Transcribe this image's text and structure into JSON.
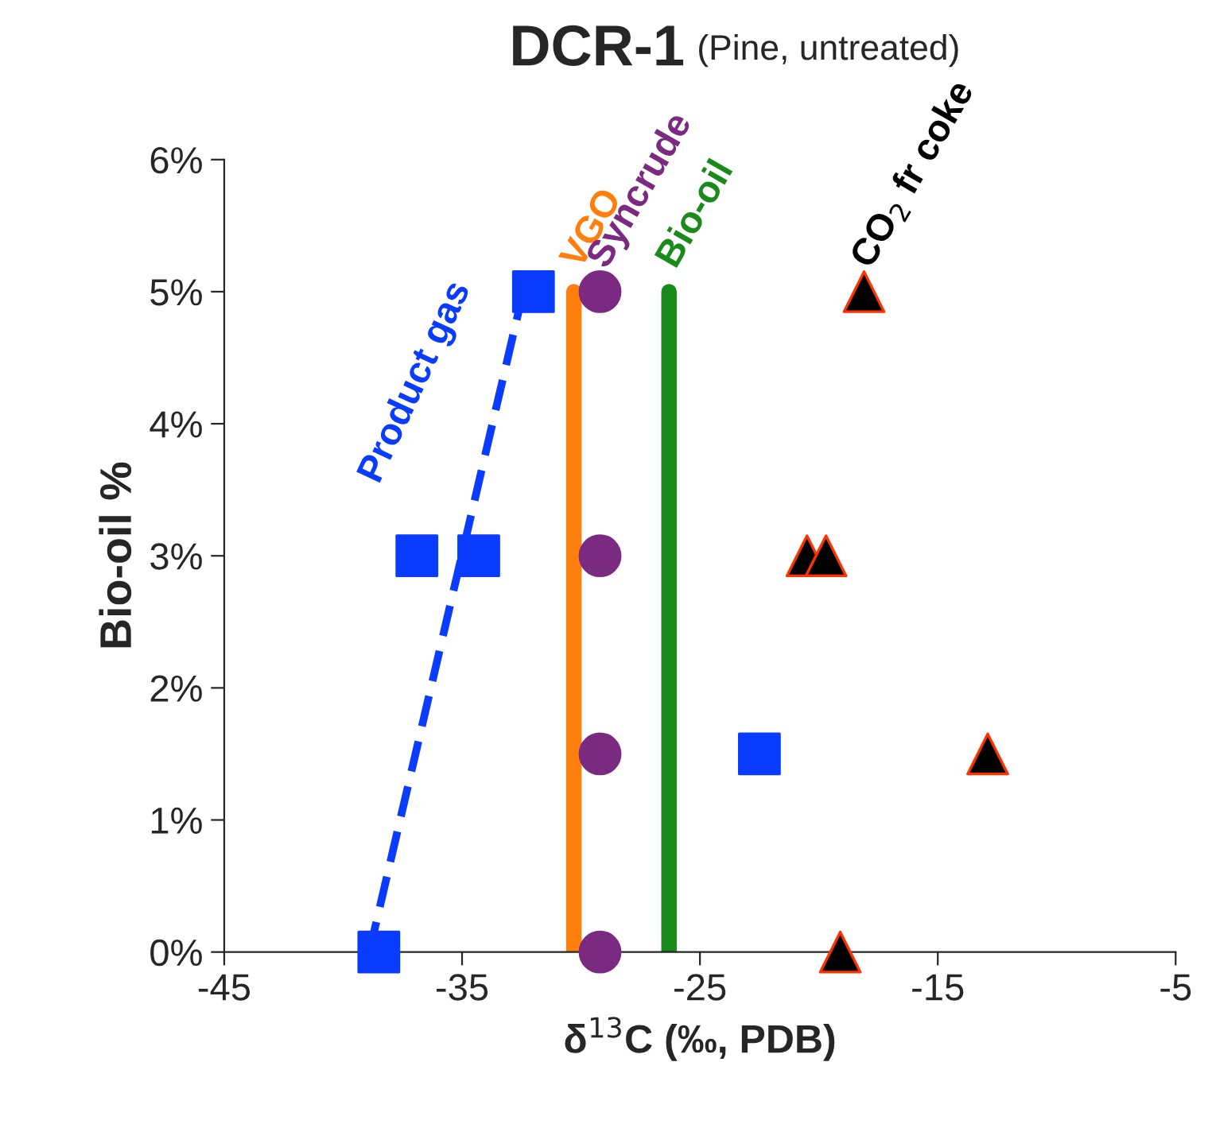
{
  "chart_data": {
    "type": "scatter",
    "title": "DCR-1",
    "subtitle": "(Pine, untreated)",
    "xlabel": "δ$^{13}$C (‰, PDB)",
    "ylabel": "Bio-oil %",
    "xlim": [
      -45,
      -5
    ],
    "xticks": [
      -45,
      -35,
      -25,
      -15,
      -5
    ],
    "ylim": [
      0,
      6
    ],
    "yticks": [
      {
        "value": 0,
        "label": "0%"
      },
      {
        "value": 1,
        "label": "1%"
      },
      {
        "value": 2,
        "label": "2%"
      },
      {
        "value": 3,
        "label": "3%"
      },
      {
        "value": 4,
        "label": "4%"
      },
      {
        "value": 5,
        "label": "5%"
      },
      {
        "value": 6,
        "label": "6%"
      }
    ],
    "grid": false,
    "legend": false,
    "series": [
      {
        "type": "line",
        "name": "Product gas",
        "color": "#0a3cff",
        "line_style": "dashed",
        "x": [
          -38.9,
          -32.3
        ],
        "values": [
          0,
          5.1
        ]
      },
      {
        "type": "line",
        "name": "VGO",
        "color": "#ff7f0e",
        "line_style": "solid",
        "x": [
          -30.3,
          -30.3
        ],
        "values": [
          0,
          5
        ]
      },
      {
        "type": "line",
        "name": "Bio-oil",
        "color": "#1a8a1a",
        "line_style": "solid",
        "x": [
          -26.3,
          -26.3
        ],
        "values": [
          0,
          5
        ]
      },
      {
        "color": "#0a3cff",
        "marker": "square",
        "x": [
          -38.5,
          -36.9,
          -34.3,
          -32.0,
          -22.5
        ],
        "values": [
          0,
          3,
          3,
          5,
          1.5
        ]
      },
      {
        "name": "Syncrude",
        "color": "#7b2a82",
        "marker": "circle",
        "x": [
          -29.2,
          -29.2,
          -29.2,
          -29.2
        ],
        "values": [
          0,
          1.5,
          3,
          5
        ]
      },
      {
        "name": "CO$_{2}$ fr coke",
        "color": "#000000",
        "marker": "triangle",
        "x": [
          -19.1,
          -12.9,
          -20.5,
          -19.7,
          -18.1
        ],
        "values": [
          0,
          1.5,
          3,
          3,
          5
        ]
      }
    ]
  }
}
